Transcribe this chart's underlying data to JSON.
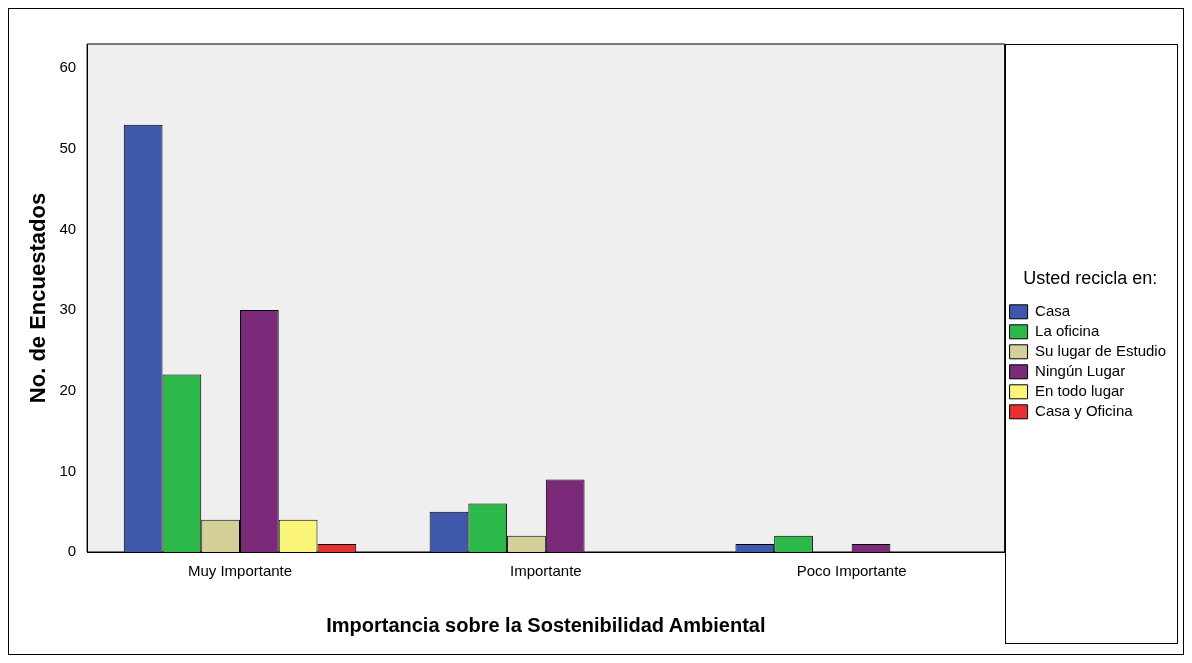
{
  "chart_data": {
    "type": "bar",
    "xlabel": "Importancia sobre la Sostenibilidad Ambiental",
    "ylabel": "No. de Encuestados",
    "legend_title": "Usted recicla en:",
    "categories": [
      "Muy Importante",
      "Importante",
      "Poco Importante"
    ],
    "series": [
      {
        "name": "Casa",
        "color": "#3e58ac",
        "values": [
          53,
          5,
          1
        ]
      },
      {
        "name": "La oficina",
        "color": "#2db84a",
        "values": [
          22,
          6,
          2
        ]
      },
      {
        "name": "Su lugar de Estudio",
        "color": "#d5cf98",
        "values": [
          4,
          2,
          null
        ]
      },
      {
        "name": "Ningún Lugar",
        "color": "#7b2a7a",
        "values": [
          30,
          9,
          1
        ]
      },
      {
        "name": "En todo lugar",
        "color": "#fbf67a",
        "values": [
          4,
          null,
          null
        ]
      },
      {
        "name": "Casa y Oficina",
        "color": "#e8302e",
        "values": [
          1,
          null,
          null
        ]
      }
    ],
    "ylim": [
      0,
      63
    ],
    "yticks": [
      0,
      10,
      20,
      30,
      40,
      50,
      60
    ],
    "grid": false,
    "legend": "right"
  }
}
